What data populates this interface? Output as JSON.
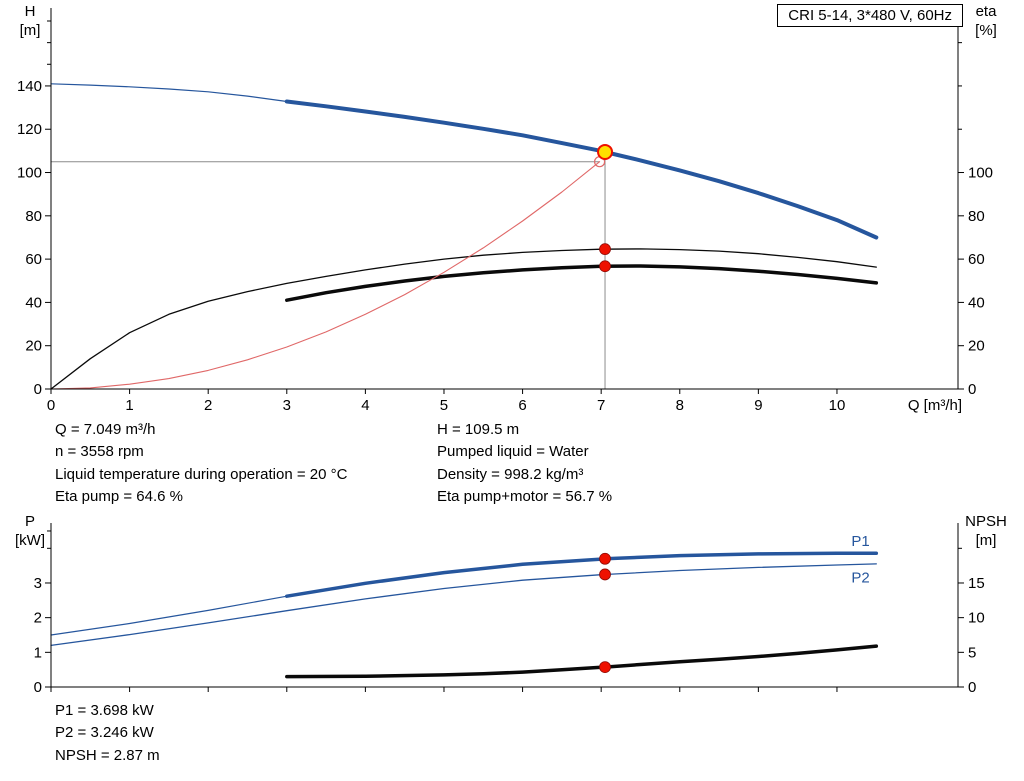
{
  "title_box": "CRI 5-14, 3*480 V, 60Hz",
  "colors": {
    "blue": "#26569d",
    "black": "#0a0a0a",
    "red": "#ee1100",
    "red_light": "#e06868",
    "yellow": "#ffdf00",
    "gray": "#8c8c8c",
    "axis": "#000000"
  },
  "info_top": {
    "col1": [
      "Q = 7.049 m³/h",
      "n = 3558 rpm",
      "Liquid temperature during operation = 20 °C",
      "Eta pump = 64.6 %"
    ],
    "col2": [
      "H = 109.5 m",
      "Pumped liquid = Water",
      "Density = 998.2 kg/m³",
      "Eta pump+motor = 56.7 %"
    ]
  },
  "info_bottom": [
    "P1 = 3.698 kW",
    "P2 = 3.246 kW",
    "NPSH = 2.87 m"
  ],
  "chart_data": [
    {
      "type": "line",
      "title": "CRI 5-14, 3*480 V, 60Hz",
      "xlabel": "Q [m³/h]",
      "ylabel_left_lines": [
        "H",
        "[m]"
      ],
      "ylabel_right_lines": [
        "eta",
        "[%]"
      ],
      "xlim": [
        0,
        11.54
      ],
      "ylim_left": [
        0,
        176
      ],
      "ylim_right": [
        0,
        176
      ],
      "x_ticks": [
        0,
        1,
        2,
        3,
        4,
        5,
        6,
        7,
        8,
        9,
        10
      ],
      "x_tick_labels": true,
      "y_ticks_left": [
        0,
        20,
        40,
        60,
        80,
        100,
        120,
        140
      ],
      "y_minor_left": [
        150,
        160,
        170
      ],
      "y_ticks_right": [
        0,
        20,
        40,
        60,
        80,
        100
      ],
      "y_minor_right": [
        120,
        140,
        160
      ],
      "grid": false,
      "legend": "none",
      "series": [
        {
          "name": "pump-curve-thin",
          "axis": "left",
          "color": "blue",
          "width": 1.2,
          "x": [
            0,
            0.5,
            1,
            1.5,
            2,
            2.5,
            3
          ],
          "y": [
            141,
            140.4,
            139.6,
            138.6,
            137.3,
            135.3,
            132.8
          ]
        },
        {
          "name": "pump-curve",
          "axis": "left",
          "color": "blue",
          "width": 4,
          "x": [
            3,
            3.5,
            4,
            4.5,
            5,
            5.5,
            6,
            6.5,
            7,
            7.049,
            7.5,
            8,
            8.5,
            9,
            9.5,
            10,
            10.5
          ],
          "y": [
            132.8,
            130.6,
            128.2,
            125.7,
            123,
            120.2,
            117.2,
            113.6,
            110,
            109.5,
            105.6,
            101,
            96,
            90.5,
            84.5,
            78,
            70
          ]
        },
        {
          "name": "eta-pump",
          "axis": "right",
          "color": "black",
          "width": 1.3,
          "x": [
            0,
            0.5,
            1,
            1.5,
            2,
            2.5,
            3,
            3.5,
            4,
            4.5,
            5,
            5.5,
            6,
            6.5,
            7,
            7.5,
            8,
            8.5,
            9,
            9.5,
            10,
            10.5
          ],
          "y": [
            0,
            14,
            26,
            34.5,
            40.5,
            45,
            48.8,
            52,
            55,
            57.7,
            60,
            61.8,
            63.1,
            64,
            64.6,
            64.7,
            64.4,
            63.7,
            62.5,
            60.8,
            58.8,
            56.3
          ]
        },
        {
          "name": "eta-pump-motor",
          "axis": "right",
          "color": "black",
          "width": 3.5,
          "x": [
            3,
            3.5,
            4,
            4.5,
            5,
            5.5,
            6,
            6.5,
            7,
            7.5,
            8,
            8.5,
            9,
            9.5,
            10,
            10.5
          ],
          "y": [
            41,
            44.5,
            47.4,
            49.9,
            52,
            53.7,
            55,
            56,
            56.7,
            56.8,
            56.4,
            55.6,
            54.4,
            52.9,
            51.1,
            49
          ]
        },
        {
          "name": "resulting-curve",
          "axis": "left",
          "color": "red_light",
          "width": 1.1,
          "x": [
            0,
            0.5,
            1,
            1.5,
            2,
            2.5,
            3,
            3.5,
            4,
            4.5,
            5,
            5.5,
            6,
            6.5,
            6.98
          ],
          "y": [
            0,
            0.5,
            2.2,
            4.8,
            8.6,
            13.5,
            19.4,
            26.4,
            34.5,
            43.6,
            53.9,
            65.2,
            77.6,
            91,
            105
          ]
        }
      ],
      "guides": {
        "h_value": 105,
        "h_from": 0,
        "h_to": 6.98,
        "v_at": 7.049,
        "v_from": 0,
        "v_to": 109.5
      },
      "markers": [
        {
          "name": "requested-duty-point",
          "x": 6.98,
          "y": 105,
          "axis": "left",
          "style": "open-red"
        },
        {
          "name": "duty-point",
          "x": 7.049,
          "y": 109.5,
          "axis": "left",
          "style": "yellow-red"
        },
        {
          "name": "eta-pump-point",
          "x": 7.049,
          "y": 64.6,
          "axis": "right",
          "style": "red"
        },
        {
          "name": "eta-pump-motor-point",
          "x": 7.049,
          "y": 56.7,
          "axis": "right",
          "style": "red"
        }
      ],
      "labels": []
    },
    {
      "type": "line",
      "title": "",
      "xlabel": "",
      "ylabel_left_lines": [
        "P",
        "[kW]"
      ],
      "ylabel_right_lines": [
        "NPSH",
        "[m]"
      ],
      "xlim": [
        0,
        11.54
      ],
      "ylim_left": [
        0,
        4.73
      ],
      "ylim_right": [
        0,
        23.65
      ],
      "x_ticks": [
        0,
        1,
        2,
        3,
        4,
        5,
        6,
        7,
        8,
        9,
        10
      ],
      "x_tick_labels": false,
      "y_ticks_left": [
        0,
        1,
        2,
        3
      ],
      "y_minor_left": [
        4,
        4.5
      ],
      "y_ticks_right": [
        0,
        5,
        10,
        15
      ],
      "y_minor_right": [
        20
      ],
      "grid": false,
      "legend": "inline",
      "series": [
        {
          "name": "p1-curve-thin",
          "axis": "left",
          "color": "blue",
          "width": 1.2,
          "x": [
            0,
            1,
            2,
            3
          ],
          "y": [
            1.5,
            1.83,
            2.21,
            2.62
          ]
        },
        {
          "name": "p1-curve",
          "axis": "left",
          "color": "blue",
          "width": 3.5,
          "x": [
            3,
            4,
            5,
            6,
            7,
            7.049,
            8,
            9,
            10,
            10.5
          ],
          "y": [
            2.62,
            2.99,
            3.3,
            3.54,
            3.69,
            3.698,
            3.79,
            3.84,
            3.86,
            3.86
          ]
        },
        {
          "name": "p2-curve",
          "axis": "left",
          "color": "blue",
          "width": 1.3,
          "x": [
            0,
            1,
            2,
            3,
            4,
            5,
            6,
            7,
            7.049,
            8,
            9,
            10,
            10.5
          ],
          "y": [
            1.2,
            1.51,
            1.85,
            2.2,
            2.54,
            2.84,
            3.08,
            3.24,
            3.246,
            3.36,
            3.45,
            3.52,
            3.55
          ]
        },
        {
          "name": "npsh-curve",
          "axis": "right",
          "color": "black",
          "width": 3.5,
          "x": [
            3,
            4,
            5,
            5.5,
            6,
            6.5,
            7,
            7.049,
            7.5,
            8,
            8.5,
            9,
            9.5,
            10,
            10.5
          ],
          "y": [
            1.5,
            1.55,
            1.75,
            1.9,
            2.15,
            2.5,
            2.85,
            2.87,
            3.25,
            3.65,
            4.0,
            4.4,
            4.85,
            5.35,
            5.9
          ]
        }
      ],
      "markers": [
        {
          "name": "p1-point",
          "x": 7.049,
          "y": 3.698,
          "axis": "left",
          "style": "red"
        },
        {
          "name": "p2-point",
          "x": 7.049,
          "y": 3.246,
          "axis": "left",
          "style": "red"
        },
        {
          "name": "npsh-point",
          "x": 7.049,
          "y": 2.87,
          "axis": "right",
          "style": "red"
        }
      ],
      "labels": [
        {
          "text": "P1",
          "x": 10.3,
          "y": 4.07,
          "axis": "left"
        },
        {
          "text": "P2",
          "x": 10.3,
          "y": 3.02,
          "axis": "left"
        }
      ]
    }
  ]
}
